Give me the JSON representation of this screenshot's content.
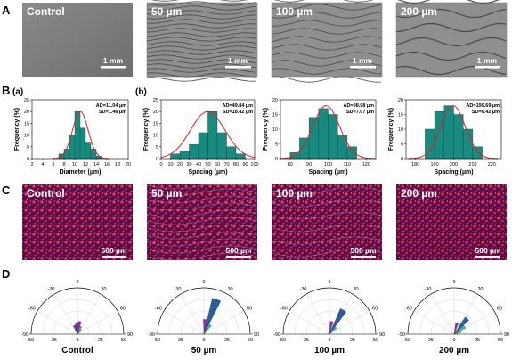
{
  "panel_letters": [
    "A",
    "B",
    "C",
    "D"
  ],
  "row_a": {
    "labels": [
      "Control",
      "50 µm",
      "100 µm",
      "200 µm"
    ],
    "scale_bar": "1 mm",
    "wave_spacing": [
      0,
      5,
      9,
      16
    ]
  },
  "row_b": {
    "sublabels": [
      "(a)",
      "(b)"
    ],
    "bar_color": "#1a8a80",
    "fit_color": "#e02020"
  },
  "row_c": {
    "labels": [
      "Control",
      "50 µm",
      "100 µm",
      "200 µm"
    ],
    "scale_bar": "500 µm"
  },
  "row_d": {
    "labels": [
      "Control",
      "50 µm",
      "100 µm",
      "200 µm"
    ],
    "angle_ticks": [
      "-90",
      "-60",
      "-30",
      "0",
      "30",
      "60",
      "90"
    ],
    "radial_ticks": [
      "50",
      "25",
      "0",
      "25",
      "50"
    ]
  },
  "chart_data": [
    {
      "type": "bar",
      "name": "Control",
      "xlabel": "Diameter (µm)",
      "ylabel": "Frequency (%)",
      "xlim": [
        2,
        20
      ],
      "xticks": [
        2,
        4,
        6,
        8,
        10,
        12,
        14,
        16,
        18,
        20
      ],
      "ylim": [
        0,
        25
      ],
      "yticks": [
        0,
        5,
        10,
        15,
        20,
        25
      ],
      "bin_width": 1,
      "bins": [
        [
          7.5,
          2
        ],
        [
          8.5,
          4
        ],
        [
          9.5,
          10
        ],
        [
          10.5,
          20
        ],
        [
          11.5,
          13
        ],
        [
          12.5,
          7
        ],
        [
          13.5,
          4
        ],
        [
          14.5,
          1
        ]
      ],
      "fit": {
        "mean": 11.04,
        "sd": 1.46,
        "peak": 20
      },
      "stats": [
        "AD=11.04 µm",
        "SD=1.46 µm"
      ]
    },
    {
      "type": "bar",
      "name": "50 µm",
      "xlabel": "Spacing (µm)",
      "ylabel": "Frequency (%)",
      "xlim": [
        0,
        100
      ],
      "xticks": [
        0,
        10,
        20,
        30,
        40,
        50,
        60,
        70,
        80,
        90,
        100
      ],
      "ylim": [
        0,
        25
      ],
      "yticks": [
        0,
        5,
        10,
        15,
        20,
        25
      ],
      "bin_width": 10,
      "bins": [
        [
          15,
          2
        ],
        [
          25,
          3
        ],
        [
          35,
          6
        ],
        [
          45,
          11
        ],
        [
          55,
          20
        ],
        [
          65,
          11
        ],
        [
          75,
          5
        ],
        [
          85,
          2
        ]
      ],
      "fit": {
        "mean": 49.84,
        "sd": 18.42,
        "peak": 20
      },
      "stats": [
        "AD=49.84 µm",
        "SD=18.42 µm"
      ]
    },
    {
      "type": "bar",
      "name": "100 µm",
      "xlabel": "Spacing (µm)",
      "ylabel": "Frequency (%)",
      "xlim": [
        75,
        125
      ],
      "xticks": [
        80,
        90,
        100,
        110,
        120
      ],
      "ylim": [
        0,
        20
      ],
      "yticks": [
        0,
        5,
        10,
        15,
        20
      ],
      "bin_width": 5,
      "bins": [
        [
          82.5,
          2
        ],
        [
          87.5,
          7
        ],
        [
          92.5,
          14
        ],
        [
          97.5,
          17
        ],
        [
          102.5,
          15
        ],
        [
          107.5,
          8
        ],
        [
          112.5,
          4
        ]
      ],
      "fit": {
        "mean": 98.98,
        "sd": 7.07,
        "peak": 18
      },
      "stats": [
        "AD=98.98 µm",
        "SD=7.07 µm"
      ]
    },
    {
      "type": "bar",
      "name": "200 µm",
      "xlabel": "Spacing (µm)",
      "ylabel": "Frequency (%)",
      "xlim": [
        175,
        225
      ],
      "xticks": [
        180,
        190,
        200,
        210,
        220
      ],
      "ylim": [
        0,
        20
      ],
      "yticks": [
        0,
        5,
        10,
        15,
        20
      ],
      "bin_width": 5,
      "bins": [
        [
          187.5,
          10
        ],
        [
          192.5,
          16
        ],
        [
          197.5,
          18
        ],
        [
          202.5,
          15
        ],
        [
          207.5,
          10
        ],
        [
          212.5,
          4
        ]
      ],
      "fit": {
        "mean": 199.69,
        "sd": 6.42,
        "peak": 18
      },
      "stats": [
        "AD=199.69 µm",
        "SD=6.42 µm"
      ]
    },
    {
      "type": "polar-bar",
      "name": "Control",
      "angle_range": [
        -90,
        90
      ],
      "r_max": 50,
      "sectors": [
        {
          "angle": -20,
          "value": 10,
          "color": "#2a5d9b"
        },
        {
          "angle": -5,
          "value": 12,
          "color": "#9c27b0"
        },
        {
          "angle": 10,
          "value": 14,
          "color": "#9c27b0"
        },
        {
          "angle": 25,
          "value": 9,
          "color": "#3dbbb4"
        },
        {
          "angle": 40,
          "value": 6,
          "color": "#4caf50"
        }
      ]
    },
    {
      "type": "polar-bar",
      "name": "50 µm",
      "angle_range": [
        -90,
        90
      ],
      "r_max": 50,
      "sectors": [
        {
          "angle": 5,
          "value": 16,
          "color": "#9c27b0"
        },
        {
          "angle": 20,
          "value": 40,
          "color": "#2a5d9b"
        },
        {
          "angle": 35,
          "value": 12,
          "color": "#3dbbb4"
        }
      ]
    },
    {
      "type": "polar-bar",
      "name": "100 µm",
      "angle_range": [
        -90,
        90
      ],
      "r_max": 50,
      "sectors": [
        {
          "angle": 10,
          "value": 14,
          "color": "#9c27b0"
        },
        {
          "angle": 30,
          "value": 30,
          "color": "#2a5d9b"
        },
        {
          "angle": 45,
          "value": 10,
          "color": "#3dbbb4"
        }
      ]
    },
    {
      "type": "polar-bar",
      "name": "200 µm",
      "angle_range": [
        -90,
        90
      ],
      "r_max": 50,
      "sectors": [
        {
          "angle": 15,
          "value": 12,
          "color": "#9c27b0"
        },
        {
          "angle": 40,
          "value": 22,
          "color": "#2a5d9b"
        },
        {
          "angle": 55,
          "value": 14,
          "color": "#3dbbb4"
        },
        {
          "angle": 70,
          "value": 8,
          "color": "#4caf50"
        }
      ]
    }
  ]
}
